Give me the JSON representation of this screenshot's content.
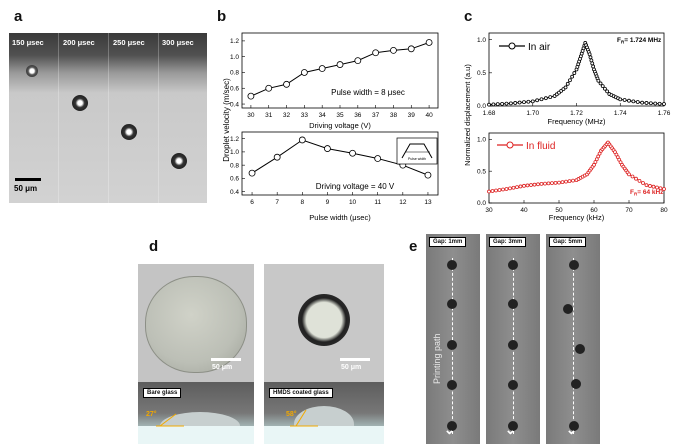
{
  "panel_labels": {
    "a": "a",
    "b": "b",
    "c": "c",
    "d": "d",
    "e": "e"
  },
  "panel_a": {
    "time_labels": [
      "150 μsec",
      "200 μsec",
      "250 μsec",
      "300 μsec"
    ],
    "scale_bar": "50 μm"
  },
  "panel_b": {
    "ylabel": "Droplet velocity (m/sec)",
    "top": {
      "xlabel": "Driving voltage (V)",
      "annotation": "Pulse width = 8 μsec"
    },
    "bottom": {
      "xlabel": "Pulse width (μsec)",
      "annotation": "Driving voltage = 40 V",
      "inset_label": "Pulse width"
    }
  },
  "panel_c": {
    "ylabel": "Normalized displacement (a.u)",
    "top": {
      "legend": "In air",
      "freq_label": "F",
      "freq_sub": "R",
      "freq_value": "= 1.724 MHz",
      "xlabel": "Frequency (MHz)"
    },
    "bottom": {
      "legend": "In fluid",
      "freq_label": "F",
      "freq_sub": "R",
      "freq_value": "= 64 kHz",
      "xlabel": "Frequency (kHz)"
    }
  },
  "panel_d": {
    "left_scale": "50 μm",
    "right_scale": "50 μm",
    "left_caption": "Bare glass",
    "right_caption": "HMDS coated glass",
    "left_angle": "27°",
    "right_angle": "58°"
  },
  "panel_e": {
    "gaps": [
      "Gap: 1mm",
      "Gap: 3mm",
      "Gap: 5mm"
    ],
    "path_label": "Printing path"
  },
  "chart_data": [
    {
      "type": "line",
      "x": [
        30,
        31,
        32,
        33,
        34,
        35,
        36,
        37,
        38,
        39,
        40
      ],
      "series": [
        {
          "values": [
            0.5,
            0.6,
            0.65,
            0.8,
            0.85,
            0.9,
            0.95,
            1.05,
            1.08,
            1.1,
            1.18
          ]
        }
      ],
      "xlabel": "Driving voltage (V)",
      "ylabel": "Droplet velocity (m/sec)",
      "xlim": [
        29.5,
        40.5
      ],
      "ylim": [
        0.35,
        1.3
      ],
      "xticks": [
        30,
        31,
        32,
        33,
        34,
        35,
        36,
        37,
        38,
        39,
        40
      ],
      "yticks": [
        0.4,
        0.6,
        0.8,
        1.0,
        1.2
      ],
      "grid": false
    },
    {
      "type": "line",
      "x": [
        6,
        7,
        8,
        9,
        10,
        11,
        12,
        13
      ],
      "series": [
        {
          "values": [
            0.68,
            0.92,
            1.18,
            1.05,
            0.98,
            0.9,
            0.8,
            0.65
          ]
        }
      ],
      "xlabel": "Pulse width (μsec)",
      "ylabel": "Droplet velocity (m/sec)",
      "xlim": [
        5.6,
        13.4
      ],
      "ylim": [
        0.35,
        1.3
      ],
      "xticks": [
        6,
        7,
        8,
        9,
        10,
        11,
        12,
        13
      ],
      "yticks": [
        0.4,
        0.6,
        0.8,
        1.0,
        1.2
      ],
      "grid": false
    },
    {
      "type": "line",
      "x": [
        1.68,
        1.69,
        1.7,
        1.71,
        1.715,
        1.72,
        1.722,
        1.724,
        1.726,
        1.728,
        1.73,
        1.735,
        1.74,
        1.75,
        1.76
      ],
      "series": [
        {
          "name": "In air",
          "values": [
            0.02,
            0.04,
            0.07,
            0.15,
            0.28,
            0.55,
            0.75,
            0.95,
            0.78,
            0.55,
            0.38,
            0.18,
            0.1,
            0.05,
            0.03
          ]
        }
      ],
      "xlabel": "Frequency (MHz)",
      "ylabel": "Normalized displacement (a.u)",
      "xlim": [
        1.68,
        1.76
      ],
      "ylim": [
        0.0,
        1.1
      ],
      "xticks": [
        1.68,
        1.7,
        1.72,
        1.74,
        1.76
      ],
      "yticks": [
        0.0,
        0.5,
        1.0
      ],
      "grid": false
    },
    {
      "type": "line",
      "x": [
        30,
        35,
        40,
        45,
        50,
        55,
        58,
        60,
        62,
        64,
        66,
        68,
        70,
        75,
        80
      ],
      "series": [
        {
          "name": "In fluid",
          "values": [
            0.18,
            0.22,
            0.27,
            0.3,
            0.32,
            0.36,
            0.45,
            0.6,
            0.82,
            0.95,
            0.8,
            0.6,
            0.45,
            0.28,
            0.22
          ]
        }
      ],
      "xlabel": "Frequency (kHz)",
      "ylabel": "Normalized displacement (a.u)",
      "xlim": [
        30,
        80
      ],
      "ylim": [
        0.0,
        1.1
      ],
      "xticks": [
        30,
        40,
        50,
        60,
        70,
        80
      ],
      "yticks": [
        0.0,
        0.5,
        1.0
      ],
      "grid": false
    }
  ]
}
